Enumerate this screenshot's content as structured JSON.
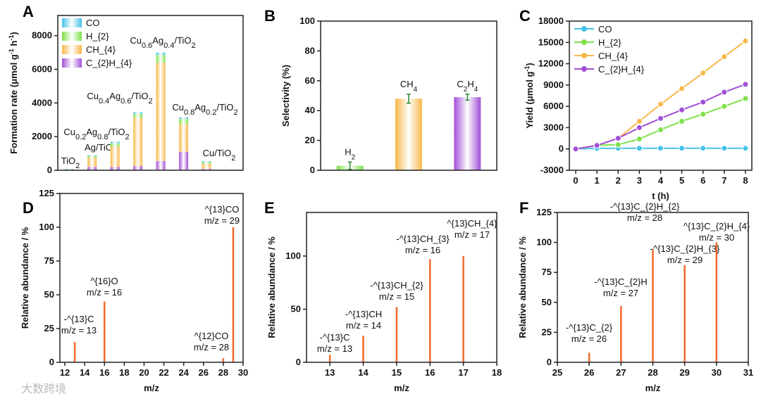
{
  "watermark": "大数跨境",
  "colors": {
    "CO": "#45c3e8",
    "H2": "#7fe04a",
    "CH4": "#f7b84a",
    "C2H4": "#a24fd6",
    "stick": "#f06a2a",
    "axis": "#222"
  },
  "chart_data": [
    {
      "panel": "A",
      "type": "bar",
      "stacked": true,
      "ylabel": "Formation rate (μmol g^{-1} h^{-1})",
      "xlabel": "",
      "ylim": [
        0,
        9200
      ],
      "yticks": [
        0,
        2000,
        4000,
        6000,
        8000
      ],
      "legend": {
        "placement": "top-left",
        "entries": [
          "CO",
          "H_{2}",
          "CH_{4}",
          "C_{2}H_{4}"
        ]
      },
      "categories": [
        "TiO_{2}",
        "Ag/TiO_{2}",
        "Cu_{0.2}Ag_{0.8}/TiO_{2}",
        "Cu_{0.4}Ag_{0.6}/TiO_{2}",
        "Cu_{0.6}Ag_{0.4}/TiO_{2}",
        "Cu_{0.8}Ag_{0.2}/TiO_{2}",
        "Cu/TiO_{2}"
      ],
      "series": [
        {
          "name": "C2H4",
          "values": [
            5,
            200,
            200,
            250,
            550,
            1100,
            80
          ]
        },
        {
          "name": "CH4",
          "values": [
            10,
            550,
            1200,
            2850,
            5850,
            1650,
            300
          ]
        },
        {
          "name": "H2",
          "values": [
            50,
            100,
            200,
            250,
            450,
            300,
            100
          ]
        },
        {
          "name": "CO",
          "values": [
            15,
            50,
            100,
            100,
            150,
            100,
            60
          ]
        }
      ]
    },
    {
      "panel": "B",
      "type": "bar",
      "ylabel": "Selectivity (%)",
      "xlabel": "",
      "ylim": [
        0,
        100
      ],
      "yticks": [
        0,
        20,
        40,
        60,
        80,
        100
      ],
      "categories": [
        "H_{2}",
        "CH_{4}",
        "C_{2}H_{4}"
      ],
      "values": [
        3,
        48,
        49
      ],
      "errors": [
        2.5,
        3,
        2
      ]
    },
    {
      "panel": "C",
      "type": "line",
      "ylabel": "Yield (μmol g^{-1})",
      "xlabel": "t (h)",
      "xlim": [
        -0.3,
        8.3
      ],
      "xticks": [
        0,
        1,
        2,
        3,
        4,
        5,
        6,
        7,
        8
      ],
      "ylim": [
        -3000,
        18000
      ],
      "yticks": [
        -3000,
        0,
        3000,
        6000,
        9000,
        12000,
        15000,
        18000
      ],
      "legend": {
        "placement": "top-left",
        "entries": [
          "CO",
          "H_{2}",
          "CH_{4}",
          "C_{2}H_{4}"
        ]
      },
      "x": [
        0,
        1,
        2,
        3,
        4,
        5,
        6,
        7,
        8
      ],
      "series": [
        {
          "name": "CO",
          "values": [
            0,
            80,
            100,
            100,
            100,
            100,
            100,
            100,
            100
          ]
        },
        {
          "name": "H2",
          "values": [
            0,
            500,
            600,
            1400,
            2700,
            3900,
            4900,
            6000,
            7100
          ]
        },
        {
          "name": "CH4",
          "values": [
            0,
            500,
            1500,
            3900,
            6300,
            8500,
            10700,
            13000,
            15200
          ]
        },
        {
          "name": "C2H4",
          "values": [
            0,
            500,
            1500,
            3000,
            4300,
            5500,
            6600,
            8000,
            9100
          ]
        }
      ]
    },
    {
      "panel": "D",
      "type": "bar",
      "ylabel": "Relative abundance / %",
      "xlabel": "m/z",
      "xlim": [
        11.5,
        30
      ],
      "xticks": [
        12,
        14,
        16,
        18,
        20,
        22,
        24,
        26,
        28,
        30
      ],
      "ylim": [
        0,
        125
      ],
      "yticks": [
        0,
        25,
        50,
        75,
        100,
        125
      ],
      "peaks": [
        {
          "x": 13,
          "y": 15,
          "label": [
            "-^{13}C",
            "m/z = 13"
          ]
        },
        {
          "x": 16,
          "y": 45,
          "label": [
            "^{16}O",
            "m/z = 16"
          ]
        },
        {
          "x": 28,
          "y": 3,
          "label": [
            "^{12}CO",
            "m/z = 28"
          ]
        },
        {
          "x": 29,
          "y": 100,
          "label": [
            "^{13}CO",
            "m/z = 29"
          ]
        }
      ]
    },
    {
      "panel": "E",
      "type": "bar",
      "ylabel": "Relative abundance / %",
      "xlabel": "m/z",
      "xlim": [
        12.3,
        18
      ],
      "xticks": [
        13,
        14,
        15,
        16,
        17,
        18
      ],
      "ylim": [
        0,
        141
      ],
      "yticks": [
        0,
        50,
        100
      ],
      "peaks": [
        {
          "x": 13,
          "y": 7,
          "label": [
            "-^{13}C",
            "m/z = 13"
          ]
        },
        {
          "x": 14,
          "y": 25,
          "label": [
            "-^{13}CH",
            "m/z = 14"
          ]
        },
        {
          "x": 15,
          "y": 52,
          "label": [
            "-^{13}CH_{2}",
            "m/z = 15"
          ]
        },
        {
          "x": 16,
          "y": 97,
          "label": [
            "-^{13}CH_{3}",
            "m/z = 16"
          ]
        },
        {
          "x": 17,
          "y": 100,
          "label": [
            "^{13}CH_{4}",
            "m/z = 17"
          ]
        }
      ]
    },
    {
      "panel": "F",
      "type": "bar",
      "ylabel": "Relative abundance / %",
      "xlabel": "m/z",
      "xlim": [
        25,
        31
      ],
      "xticks": [
        25,
        26,
        27,
        28,
        29,
        30,
        31
      ],
      "ylim": [
        0,
        125
      ],
      "yticks": [
        0,
        25,
        50,
        75,
        100,
        125
      ],
      "peaks": [
        {
          "x": 26,
          "y": 8,
          "label": [
            "-^{13}C_{2}",
            "m/z = 26"
          ]
        },
        {
          "x": 27,
          "y": 47,
          "label": [
            "-^{13}C_{2}H",
            "m/z = 27"
          ]
        },
        {
          "x": 28,
          "y": 94,
          "label": [
            "-^{13}C_{2}H_{2}",
            "m/z = 28"
          ]
        },
        {
          "x": 29,
          "y": 81,
          "label": [
            "-^{13}C_{2}H_{3}",
            "m/z = 29"
          ]
        },
        {
          "x": 30,
          "y": 100,
          "label": [
            "^{13}C_{2}H_{4}",
            "m/z = 30"
          ]
        }
      ]
    }
  ]
}
